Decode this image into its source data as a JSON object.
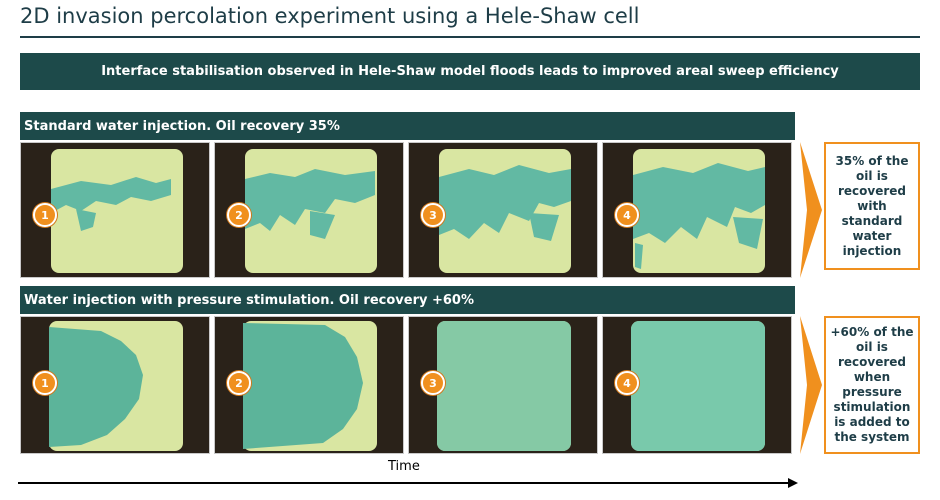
{
  "title": "2D invasion percolation experiment using a Hele-Shaw cell",
  "banner": "Interface stabilisation observed in Hele-Shaw model floods leads to improved areal sweep efficiency",
  "rows": [
    {
      "header": "Standard water injection. Oil recovery 35%",
      "note": "35% of the oil is recovered with standard water injection",
      "steps": [
        "1",
        "2",
        "3",
        "4"
      ]
    },
    {
      "header": "Water injection with pressure stimulation. Oil recovery +60%",
      "note": "+60% of the oil is recovered when pressure stimulation is added to the system",
      "steps": [
        "1",
        "2",
        "3",
        "4"
      ]
    }
  ],
  "time_label": "Time",
  "colors": {
    "dark_teal": "#1d4a4a",
    "accent_orange": "#f0901e",
    "cell_background": "#d9e6a2",
    "water_front": "#5fb8a0"
  }
}
